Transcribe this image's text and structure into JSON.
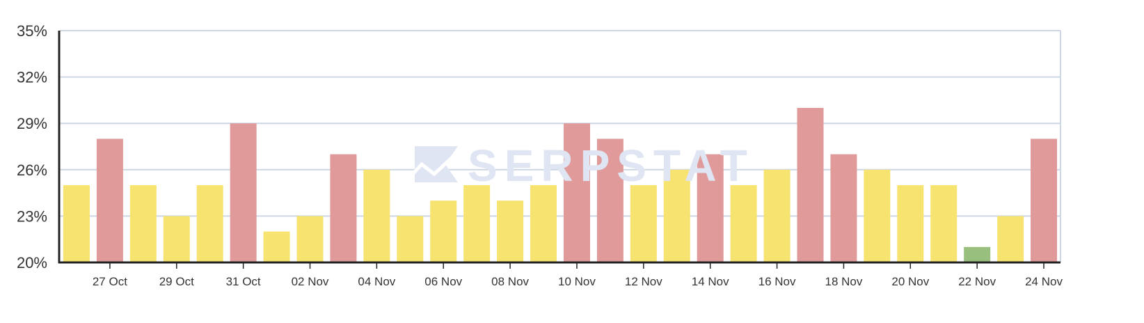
{
  "chart_data": {
    "type": "bar",
    "categories": [
      "26 Oct",
      "27 Oct",
      "28 Oct",
      "29 Oct",
      "30 Oct",
      "31 Oct",
      "01 Nov",
      "02 Nov",
      "03 Nov",
      "04 Nov",
      "05 Nov",
      "06 Nov",
      "07 Nov",
      "08 Nov",
      "09 Nov",
      "10 Nov",
      "11 Nov",
      "12 Nov",
      "13 Nov",
      "14 Nov",
      "15 Nov",
      "16 Nov",
      "17 Nov",
      "18 Nov",
      "19 Nov",
      "20 Nov",
      "21 Nov",
      "22 Nov",
      "23 Nov",
      "24 Nov"
    ],
    "values": [
      25,
      28,
      25,
      23,
      25,
      29,
      22,
      23,
      27,
      26,
      23,
      24,
      25,
      24,
      25,
      29,
      28,
      25,
      26,
      27,
      25,
      26,
      30,
      27,
      26,
      25,
      25,
      21,
      23,
      28
    ],
    "bar_colors": [
      "#f7e370",
      "#e09a9a",
      "#f7e370",
      "#f7e370",
      "#f7e370",
      "#e09a9a",
      "#f7e370",
      "#f7e370",
      "#e09a9a",
      "#f7e370",
      "#f7e370",
      "#f7e370",
      "#f7e370",
      "#f7e370",
      "#f7e370",
      "#e09a9a",
      "#e09a9a",
      "#f7e370",
      "#f7e370",
      "#e09a9a",
      "#f7e370",
      "#f7e370",
      "#e09a9a",
      "#e09a9a",
      "#f7e370",
      "#f7e370",
      "#f7e370",
      "#98bf7e",
      "#f7e370",
      "#e09a9a"
    ],
    "x_tick_labels": [
      "27 Oct",
      "29 Oct",
      "31 Oct",
      "02 Nov",
      "04 Nov",
      "06 Nov",
      "08 Nov",
      "10 Nov",
      "12 Nov",
      "14 Nov",
      "16 Nov",
      "18 Nov",
      "20 Nov",
      "22 Nov",
      "24 Nov"
    ],
    "y_ticks": [
      20,
      23,
      26,
      29,
      32,
      35
    ],
    "y_tick_labels": [
      "20%",
      "23%",
      "26%",
      "29%",
      "32%",
      "35%"
    ],
    "ylim": [
      20,
      35
    ],
    "grid": true,
    "title": "",
    "xlabel": "",
    "ylabel": ""
  },
  "watermark": {
    "text": "SERPSTAT",
    "icon": "serpstat-logo-icon"
  },
  "colors": {
    "grid": "#cdd6e3",
    "axis": "#222222",
    "tick_text": "#333333"
  }
}
